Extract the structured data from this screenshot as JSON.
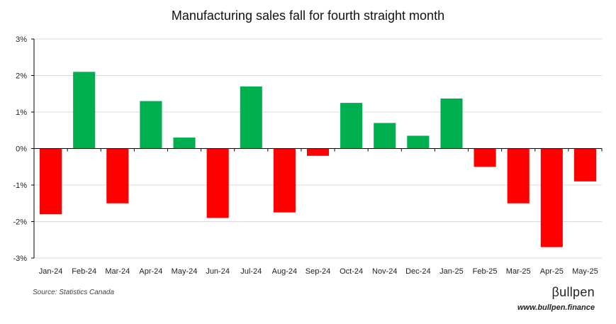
{
  "chart_data": {
    "type": "bar",
    "title": "Manufacturing sales fall for fourth straight month",
    "xlabel": "",
    "ylabel": "",
    "categories": [
      "Jan-24",
      "Feb-24",
      "Mar-24",
      "Apr-24",
      "May-24",
      "Jun-24",
      "Jul-24",
      "Aug-24",
      "Sep-24",
      "Oct-24",
      "Nov-24",
      "Dec-24",
      "Jan-25",
      "Feb-25",
      "Mar-25",
      "Apr-25",
      "May-25"
    ],
    "values": [
      -1.8,
      2.1,
      -1.5,
      1.3,
      0.3,
      -1.9,
      1.7,
      -1.75,
      -0.2,
      1.25,
      0.7,
      0.35,
      1.37,
      -0.5,
      -1.5,
      -2.7,
      -0.9
    ],
    "ylim": [
      -3,
      3
    ],
    "yticks": [
      3,
      2,
      1,
      0,
      -1,
      -2,
      -3
    ],
    "ytick_labels": [
      "3%",
      "2%",
      "1%",
      "0%",
      "-1%",
      "-2%",
      "-3%"
    ],
    "grid": true,
    "legend": "none",
    "colors": {
      "positive": "#00b050",
      "negative": "#ff0000",
      "grid": "#d9d9d9",
      "axis": "#000000"
    }
  },
  "footer": {
    "source": "Source: Statistics Canada",
    "brand": "βullpen",
    "url": "www.bullpen.finance"
  }
}
